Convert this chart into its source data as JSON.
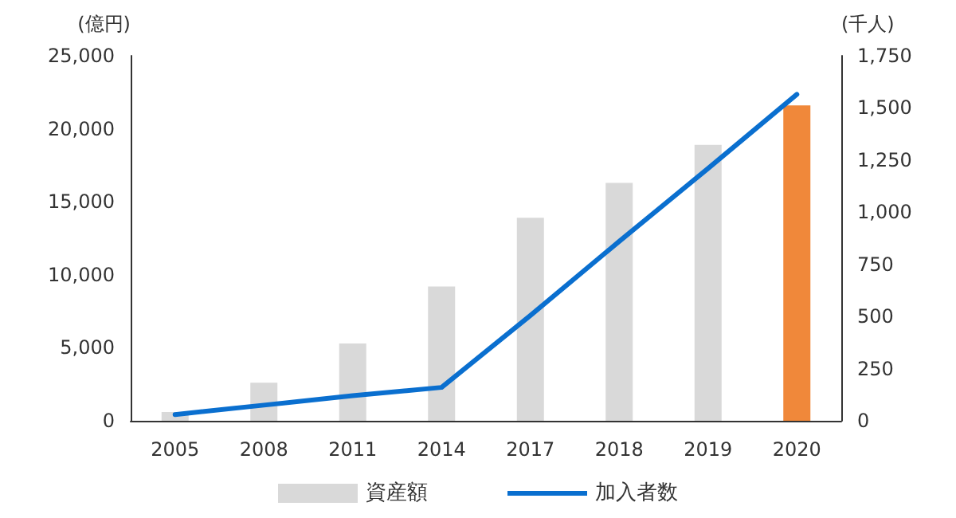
{
  "chart_data": {
    "type": "bar",
    "ylabel": "(億円)",
    "y2label": "(千人)",
    "categories": [
      "2005",
      "2008",
      "2011",
      "2014",
      "2017",
      "2018",
      "2019",
      "2020"
    ],
    "series": [
      {
        "name": "資産額",
        "color": "#d9d9d9",
        "colors": [
          "#d9d9d9",
          "#d9d9d9",
          "#d9d9d9",
          "#d9d9d9",
          "#d9d9d9",
          "#d9d9d9",
          "#d9d9d9",
          "#f0883a"
        ],
        "values": [
          600,
          2600,
          5300,
          9200,
          13900,
          16300,
          18900,
          21600
        ]
      },
      {
        "name": "加入者数",
        "type": "line",
        "axis": "y2",
        "color": "#0a6fcf",
        "values": [
          30,
          75,
          120,
          160,
          505,
          860,
          1210,
          1565
        ]
      }
    ],
    "ylim": [
      0,
      25000
    ],
    "yticks": [
      {
        "value": 0,
        "label": "0"
      },
      {
        "value": 5000,
        "label": "5,000"
      },
      {
        "value": 10000,
        "label": "10,000"
      },
      {
        "value": 15000,
        "label": "15,000"
      },
      {
        "value": 20000,
        "label": "20,000"
      },
      {
        "value": 25000,
        "label": "25,000"
      }
    ],
    "y2lim": [
      0,
      1750
    ],
    "y2ticks": [
      {
        "value": 0,
        "label": "0"
      },
      {
        "value": 250,
        "label": "250"
      },
      {
        "value": 500,
        "label": "500"
      },
      {
        "value": 750,
        "label": "750"
      },
      {
        "value": 1000,
        "label": "1,000"
      },
      {
        "value": 1250,
        "label": "1,250"
      },
      {
        "value": 1500,
        "label": "1,500"
      },
      {
        "value": 1750,
        "label": "1,750"
      }
    ],
    "grid": false,
    "legend": "bottom",
    "marker": "none",
    "line_style": "solid"
  }
}
